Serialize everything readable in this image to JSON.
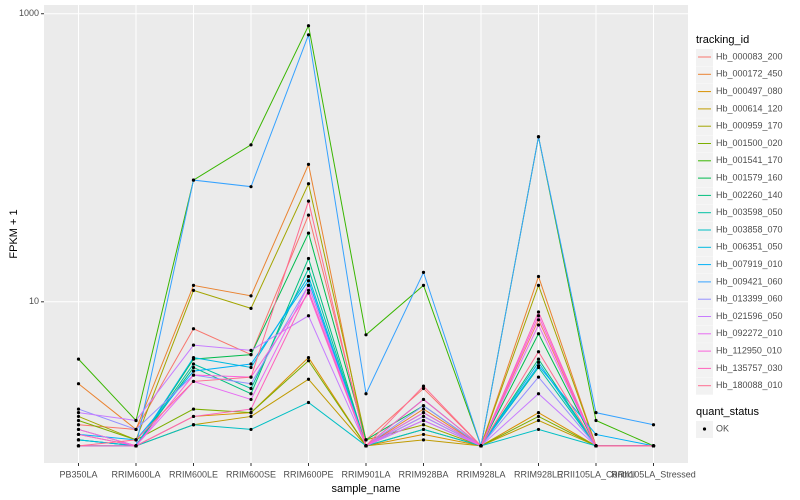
{
  "chart_data": {
    "type": "line",
    "log_y": true,
    "grid": true,
    "x_label": "sample_name",
    "y_label": "FPKM + 1",
    "categories": [
      "PB350LA",
      "RRIM600LA",
      "RRIM600LE",
      "RRIM600SE",
      "RRIM600PE",
      "RRIM901LA",
      "RRIM928BA",
      "RRIM928LA",
      "RRIM928LE",
      "RRII105LA_Control",
      "RRII105LA_Stressed"
    ],
    "ylim": [
      0.76,
      1150
    ],
    "yticks": [
      10,
      1000
    ],
    "legend_title": "tracking_id",
    "legend_position": "right",
    "point_legend_title": "quant_status",
    "point_legend_entries": [
      "OK"
    ],
    "point_color": "#000000",
    "series": [
      {
        "name": "Hb_000083_200",
        "color": "#F8766D",
        "values": [
          1.4,
          1.3,
          6.5,
          4.3,
          40,
          1.1,
          2.5,
          1.0,
          7.5,
          1.0,
          1.0
        ]
      },
      {
        "name": "Hb_000172_450",
        "color": "#EA8331",
        "values": [
          2.7,
          1.3,
          13,
          11,
          90,
          1.0,
          1.8,
          1.0,
          15,
          1.0,
          1.0
        ]
      },
      {
        "name": "Hb_000497_080",
        "color": "#D89000",
        "values": [
          1.2,
          1.0,
          1.6,
          1.7,
          4.1,
          1.0,
          1.2,
          1.0,
          1.7,
          1.0,
          1.0
        ]
      },
      {
        "name": "Hb_000614_120",
        "color": "#C09B00",
        "values": [
          1.3,
          1.0,
          1.4,
          1.6,
          2.9,
          1.0,
          1.1,
          1.0,
          1.5,
          1.0,
          1.0
        ]
      },
      {
        "name": "Hb_000959_170",
        "color": "#A3A500",
        "values": [
          1.6,
          1.1,
          12,
          9,
          66,
          1.1,
          1.4,
          1.0,
          13,
          1.0,
          1.0
        ]
      },
      {
        "name": "Hb_001500_020",
        "color": "#7CAE00",
        "values": [
          1.5,
          1.1,
          1.8,
          1.7,
          3.9,
          1.0,
          1.3,
          1.0,
          1.6,
          1.0,
          1.0
        ]
      },
      {
        "name": "Hb_001541_170",
        "color": "#39B600",
        "values": [
          4.0,
          1.5,
          70,
          123,
          826,
          5.9,
          13,
          1.0,
          140,
          1.5,
          1.0
        ]
      },
      {
        "name": "Hb_001579_160",
        "color": "#00BB4E",
        "values": [
          1.0,
          1.0,
          4.0,
          4.3,
          30,
          1.1,
          1.9,
          1.0,
          6,
          1.0,
          1.0
        ]
      },
      {
        "name": "Hb_002260_140",
        "color": "#00BF7D",
        "values": [
          1.1,
          1.0,
          3.5,
          2.3,
          20,
          1.0,
          1.6,
          1.0,
          4,
          1.0,
          1.0
        ]
      },
      {
        "name": "Hb_003598_050",
        "color": "#00C1A3",
        "values": [
          1.1,
          1.0,
          3.7,
          2.5,
          17,
          1.0,
          1.7,
          1.0,
          3.5,
          1.0,
          1.0
        ]
      },
      {
        "name": "Hb_003858_070",
        "color": "#00BFC4",
        "values": [
          1.0,
          1.0,
          1.4,
          1.3,
          2.0,
          1.0,
          1.3,
          1.0,
          1.3,
          1.0,
          1.0
        ]
      },
      {
        "name": "Hb_006351_050",
        "color": "#00BAE0",
        "values": [
          1.1,
          1.0,
          4.1,
          3.5,
          15,
          1.0,
          1.5,
          1.0,
          3.8,
          1.0,
          1.0
        ]
      },
      {
        "name": "Hb_007919_010",
        "color": "#00B0F6",
        "values": [
          1.2,
          1.1,
          3.3,
          3.7,
          14,
          1.0,
          2.1,
          1.0,
          3.6,
          1.2,
          1.0
        ]
      },
      {
        "name": "Hb_009421_060",
        "color": "#35A2FF",
        "values": [
          1.0,
          1.0,
          70,
          63,
          714,
          2.3,
          16,
          1.0,
          140,
          1.7,
          1.4
        ]
      },
      {
        "name": "Hb_013399_060",
        "color": "#9590FF",
        "values": [
          1.8,
          1.3,
          3.1,
          2.7,
          13,
          1.0,
          1.9,
          1.0,
          3.0,
          1.0,
          1.0
        ]
      },
      {
        "name": "Hb_021596_050",
        "color": "#C77CFF",
        "values": [
          1.7,
          1.5,
          5.0,
          4.6,
          8,
          1.0,
          1.6,
          1.0,
          2.3,
          1.0,
          1.0
        ]
      },
      {
        "name": "Hb_092272_010",
        "color": "#E76BF3",
        "values": [
          1.3,
          1.0,
          2.8,
          2.1,
          13,
          1.0,
          1.5,
          1.0,
          6.9,
          1.0,
          1.0
        ]
      },
      {
        "name": "Hb_112950_010",
        "color": "#FA62DB",
        "values": [
          1.2,
          1.0,
          3.1,
          3.0,
          11.5,
          1.0,
          1.7,
          1.0,
          8,
          1.0,
          1.0
        ]
      },
      {
        "name": "Hb_135757_030",
        "color": "#FF62BC",
        "values": [
          1.0,
          1.0,
          1.6,
          1.8,
          12,
          1.0,
          2.1,
          1.0,
          8.5,
          1.0,
          1.0
        ]
      },
      {
        "name": "Hb_180088_010",
        "color": "#FF6C91",
        "values": [
          1.0,
          1.1,
          2.8,
          3.0,
          50,
          1.0,
          2.6,
          1.0,
          4.5,
          1.0,
          1.0
        ]
      }
    ]
  }
}
